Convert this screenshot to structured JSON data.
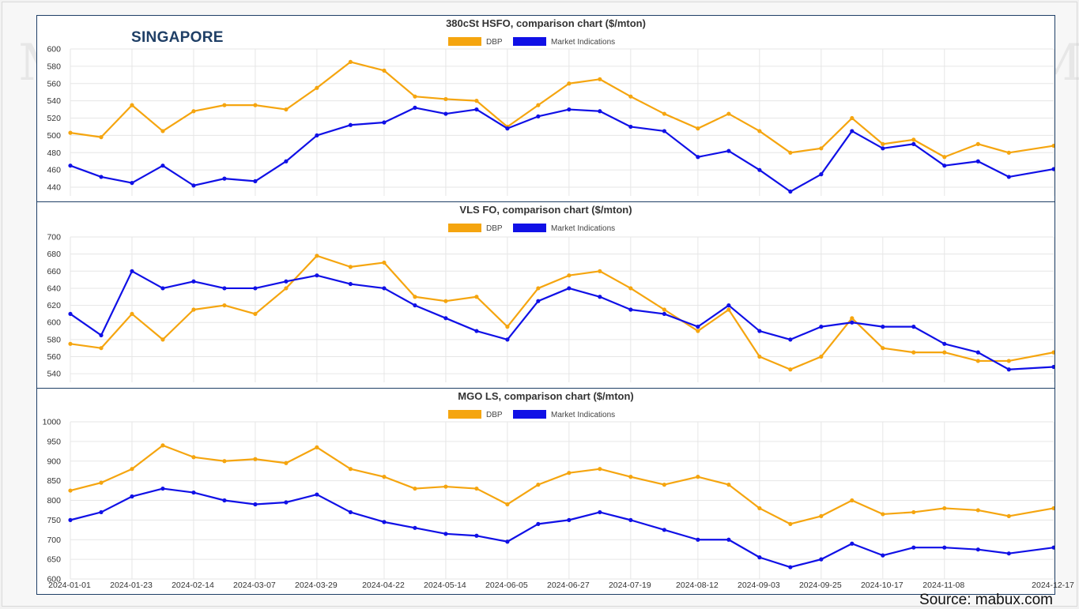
{
  "region": "SINGAPORE",
  "source": "Source: mabux.com",
  "x_ticks": [
    "2024-01-01",
    "2024-01-23",
    "2024-02-14",
    "2024-03-07",
    "2024-03-29",
    "2024-04-22",
    "2024-05-14",
    "2024-06-05",
    "2024-06-27",
    "2024-07-19",
    "2024-08-12",
    "2024-09-03",
    "2024-09-25",
    "2024-10-17",
    "2024-11-08",
    "2024-12-17"
  ],
  "colors": {
    "dbp": "#f5a50f",
    "market": "#1010e6",
    "frame": "#1f3f66",
    "grid": "#e6e6e6"
  },
  "legend": {
    "dbp": "DBP",
    "market": "Market Indications"
  },
  "chart_data": [
    {
      "type": "line",
      "title": "380cSt HSFO, comparison chart ($/mton)",
      "xlabel": "",
      "ylabel": "",
      "ylim": [
        430,
        600
      ],
      "y_ticks": [
        440,
        460,
        480,
        500,
        520,
        540,
        560,
        580,
        600
      ],
      "x": [
        "2024-01-01",
        "2024-01-12",
        "2024-01-23",
        "2024-02-03",
        "2024-02-14",
        "2024-02-25",
        "2024-03-07",
        "2024-03-18",
        "2024-03-29",
        "2024-04-10",
        "2024-04-22",
        "2024-05-03",
        "2024-05-14",
        "2024-05-25",
        "2024-06-05",
        "2024-06-16",
        "2024-06-27",
        "2024-07-08",
        "2024-07-19",
        "2024-07-31",
        "2024-08-12",
        "2024-08-23",
        "2024-09-03",
        "2024-09-14",
        "2024-09-25",
        "2024-10-06",
        "2024-10-17",
        "2024-10-28",
        "2024-11-08",
        "2024-11-20",
        "2024-12-01",
        "2024-12-17"
      ],
      "series": [
        {
          "name": "DBP",
          "values": [
            503,
            498,
            535,
            505,
            528,
            535,
            535,
            530,
            555,
            585,
            575,
            545,
            542,
            540,
            510,
            535,
            560,
            565,
            545,
            525,
            508,
            525,
            505,
            480,
            485,
            520,
            490,
            495,
            475,
            490,
            480,
            488
          ]
        },
        {
          "name": "Market Indications",
          "values": [
            465,
            452,
            445,
            465,
            442,
            450,
            447,
            470,
            500,
            512,
            515,
            532,
            525,
            530,
            508,
            522,
            530,
            528,
            510,
            505,
            475,
            482,
            460,
            435,
            455,
            505,
            485,
            490,
            465,
            470,
            452,
            461
          ]
        }
      ]
    },
    {
      "type": "line",
      "title": "VLS FO, comparison chart ($/mton)",
      "xlabel": "",
      "ylabel": "",
      "ylim": [
        530,
        700
      ],
      "y_ticks": [
        540,
        560,
        580,
        600,
        620,
        640,
        660,
        680,
        700
      ],
      "x": [
        "2024-01-01",
        "2024-01-12",
        "2024-01-23",
        "2024-02-03",
        "2024-02-14",
        "2024-02-25",
        "2024-03-07",
        "2024-03-18",
        "2024-03-29",
        "2024-04-10",
        "2024-04-22",
        "2024-05-03",
        "2024-05-14",
        "2024-05-25",
        "2024-06-05",
        "2024-06-16",
        "2024-06-27",
        "2024-07-08",
        "2024-07-19",
        "2024-07-31",
        "2024-08-12",
        "2024-08-23",
        "2024-09-03",
        "2024-09-14",
        "2024-09-25",
        "2024-10-06",
        "2024-10-17",
        "2024-10-28",
        "2024-11-08",
        "2024-11-20",
        "2024-12-01",
        "2024-12-17"
      ],
      "series": [
        {
          "name": "DBP",
          "values": [
            575,
            570,
            610,
            580,
            615,
            620,
            610,
            640,
            678,
            665,
            670,
            630,
            625,
            630,
            595,
            640,
            655,
            660,
            640,
            615,
            590,
            615,
            560,
            545,
            560,
            605,
            570,
            565,
            565,
            555,
            555,
            565
          ]
        },
        {
          "name": "Market Indications",
          "values": [
            610,
            585,
            660,
            640,
            648,
            640,
            640,
            648,
            655,
            645,
            640,
            620,
            605,
            590,
            580,
            625,
            640,
            630,
            615,
            610,
            595,
            620,
            590,
            580,
            595,
            600,
            595,
            595,
            575,
            565,
            545,
            548
          ]
        }
      ]
    },
    {
      "type": "line",
      "title": "MGO LS, comparison chart ($/mton)",
      "xlabel": "",
      "ylabel": "",
      "ylim": [
        600,
        1000
      ],
      "y_ticks": [
        600,
        650,
        700,
        750,
        800,
        850,
        900,
        950,
        1000
      ],
      "x": [
        "2024-01-01",
        "2024-01-12",
        "2024-01-23",
        "2024-02-03",
        "2024-02-14",
        "2024-02-25",
        "2024-03-07",
        "2024-03-18",
        "2024-03-29",
        "2024-04-10",
        "2024-04-22",
        "2024-05-03",
        "2024-05-14",
        "2024-05-25",
        "2024-06-05",
        "2024-06-16",
        "2024-06-27",
        "2024-07-08",
        "2024-07-19",
        "2024-07-31",
        "2024-08-12",
        "2024-08-23",
        "2024-09-03",
        "2024-09-14",
        "2024-09-25",
        "2024-10-06",
        "2024-10-17",
        "2024-10-28",
        "2024-11-08",
        "2024-11-20",
        "2024-12-01",
        "2024-12-17"
      ],
      "series": [
        {
          "name": "DBP",
          "values": [
            825,
            845,
            880,
            940,
            910,
            900,
            905,
            895,
            935,
            880,
            860,
            830,
            835,
            830,
            790,
            840,
            870,
            880,
            860,
            840,
            860,
            840,
            780,
            740,
            760,
            800,
            765,
            770,
            780,
            775,
            760,
            780
          ]
        },
        {
          "name": "Market Indications",
          "values": [
            750,
            770,
            810,
            830,
            820,
            800,
            790,
            795,
            815,
            770,
            745,
            730,
            715,
            710,
            695,
            740,
            750,
            770,
            750,
            725,
            700,
            700,
            655,
            630,
            650,
            690,
            660,
            680,
            680,
            675,
            665,
            680
          ]
        }
      ]
    }
  ]
}
